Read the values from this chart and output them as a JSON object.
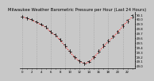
{
  "title": "Milwaukee Weather Barometric Pressure per Hour (Last 24 Hours)",
  "hours": [
    0,
    1,
    2,
    3,
    4,
    5,
    6,
    7,
    8,
    9,
    10,
    11,
    12,
    13,
    14,
    15,
    16,
    17,
    18,
    19,
    20,
    21,
    22,
    23
  ],
  "pressure": [
    30.05,
    30.02,
    29.98,
    29.93,
    29.88,
    29.82,
    29.72,
    29.65,
    29.55,
    29.42,
    29.3,
    29.18,
    29.1,
    29.05,
    29.08,
    29.18,
    29.3,
    29.42,
    29.52,
    29.62,
    29.72,
    29.85,
    29.95,
    30.05
  ],
  "open": [
    30.06,
    30.03,
    30.0,
    29.95,
    29.9,
    29.85,
    29.75,
    29.68,
    29.58,
    29.45,
    29.33,
    29.2,
    29.12,
    29.07,
    29.1,
    29.2,
    29.33,
    29.45,
    29.55,
    29.65,
    29.75,
    29.88,
    29.98,
    30.08
  ],
  "high": [
    30.08,
    30.05,
    30.01,
    29.96,
    29.92,
    29.86,
    29.77,
    29.7,
    29.6,
    29.47,
    29.35,
    29.22,
    29.14,
    29.09,
    29.12,
    29.22,
    29.35,
    29.47,
    29.57,
    29.67,
    29.77,
    29.9,
    30.0,
    30.1
  ],
  "low": [
    30.02,
    29.99,
    29.96,
    29.91,
    29.86,
    29.8,
    29.7,
    29.62,
    29.52,
    29.39,
    29.27,
    29.15,
    29.07,
    29.02,
    29.06,
    29.15,
    29.27,
    29.39,
    29.49,
    29.59,
    29.69,
    29.82,
    29.92,
    30.02
  ],
  "line_color": "#ff0000",
  "marker_color": "#000000",
  "bg_color": "#c8c8c8",
  "grid_color": "#aaaaaa",
  "ylabel_color": "#000000",
  "ylim": [
    28.95,
    30.15
  ],
  "yticks": [
    29.0,
    29.1,
    29.2,
    29.3,
    29.4,
    29.5,
    29.6,
    29.7,
    29.8,
    29.9,
    30.0,
    30.1
  ],
  "title_fontsize": 3.8,
  "tick_fontsize": 2.8
}
